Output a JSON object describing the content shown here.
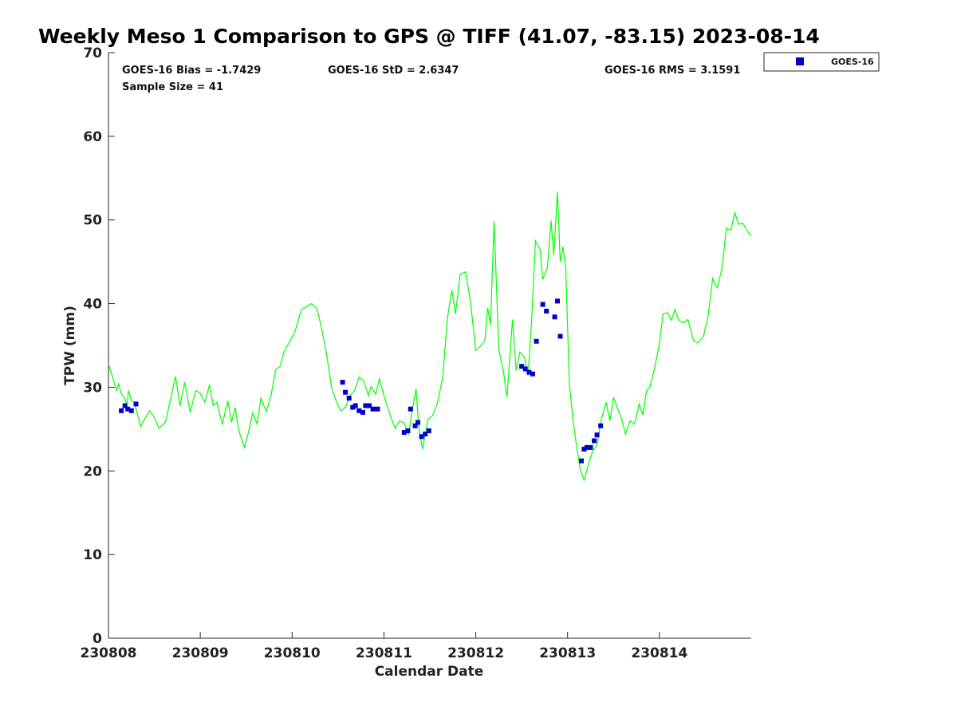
{
  "chart_data": {
    "type": "scatter",
    "title": "Weekly Meso 1 Comparison to GPS @ TIFF (41.07, -83.15) 2023-08-14",
    "xlabel": "Calendar Date",
    "ylabel": "TPW (mm)",
    "xlim": [
      230808,
      230815
    ],
    "ylim": [
      0,
      70
    ],
    "x_ticks": [
      "230808",
      "230809",
      "230810",
      "230811",
      "230812",
      "230813",
      "230814"
    ],
    "y_ticks": [
      0,
      10,
      20,
      30,
      40,
      50,
      60,
      70
    ],
    "grid": false,
    "legend_position": "top-right outside",
    "stats": {
      "bias": "GOES-16 Bias = -1.7429",
      "std": "GOES-16 StD = 2.6347",
      "rms": "GOES-16 RMS = 3.1591",
      "sample": "Sample Size = 41"
    },
    "series": [
      {
        "name": "GPS",
        "kind": "line",
        "color": "#00ff00",
        "points": [
          [
            230808.0,
            32.8
          ],
          [
            230808.05,
            31.0
          ],
          [
            230808.09,
            29.6
          ],
          [
            230808.11,
            30.4
          ],
          [
            230808.14,
            29.2
          ],
          [
            230808.17,
            28.8
          ],
          [
            230808.2,
            28.0
          ],
          [
            230808.22,
            29.6
          ],
          [
            230808.25,
            28.4
          ],
          [
            230808.28,
            28.2
          ],
          [
            230808.31,
            27.0
          ],
          [
            230808.35,
            25.3
          ],
          [
            230808.4,
            26.3
          ],
          [
            230808.45,
            27.2
          ],
          [
            230808.5,
            26.4
          ],
          [
            230808.55,
            25.1
          ],
          [
            230808.62,
            25.8
          ],
          [
            230808.68,
            28.8
          ],
          [
            230808.73,
            31.3
          ],
          [
            230808.78,
            27.8
          ],
          [
            230808.83,
            30.6
          ],
          [
            230808.89,
            27.0
          ],
          [
            230808.95,
            29.6
          ],
          [
            230809.0,
            29.3
          ],
          [
            230809.05,
            28.2
          ],
          [
            230809.1,
            30.3
          ],
          [
            230809.14,
            27.8
          ],
          [
            230809.18,
            28.2
          ],
          [
            230809.24,
            25.6
          ],
          [
            230809.3,
            28.4
          ],
          [
            230809.34,
            25.8
          ],
          [
            230809.38,
            27.6
          ],
          [
            230809.42,
            24.8
          ],
          [
            230809.48,
            22.8
          ],
          [
            230809.52,
            24.4
          ],
          [
            230809.57,
            26.9
          ],
          [
            230809.62,
            25.6
          ],
          [
            230809.66,
            28.7
          ],
          [
            230809.72,
            27.1
          ],
          [
            230809.77,
            29.0
          ],
          [
            230809.82,
            32.1
          ],
          [
            230809.87,
            32.5
          ],
          [
            230809.91,
            34.2
          ],
          [
            230809.96,
            35.2
          ],
          [
            230810.03,
            36.6
          ],
          [
            230810.1,
            39.3
          ],
          [
            230810.15,
            39.6
          ],
          [
            230810.21,
            40.0
          ],
          [
            230810.27,
            39.4
          ],
          [
            230810.32,
            37.1
          ],
          [
            230810.37,
            34.3
          ],
          [
            230810.43,
            30.0
          ],
          [
            230810.48,
            28.3
          ],
          [
            230810.53,
            27.2
          ],
          [
            230810.58,
            27.6
          ],
          [
            230810.63,
            29.0
          ],
          [
            230810.68,
            29.6
          ],
          [
            230810.73,
            31.2
          ],
          [
            230810.78,
            30.8
          ],
          [
            230810.83,
            29.0
          ],
          [
            230810.86,
            30.1
          ],
          [
            230810.91,
            29.2
          ],
          [
            230810.95,
            31.0
          ],
          [
            230811.01,
            28.6
          ],
          [
            230811.07,
            26.6
          ],
          [
            230811.12,
            25.1
          ],
          [
            230811.17,
            26.0
          ],
          [
            230811.22,
            25.7
          ],
          [
            230811.27,
            24.4
          ],
          [
            230811.3,
            26.7
          ],
          [
            230811.35,
            29.8
          ],
          [
            230811.38,
            25.2
          ],
          [
            230811.42,
            22.6
          ],
          [
            230811.48,
            26.2
          ],
          [
            230811.53,
            26.6
          ],
          [
            230811.58,
            28.0
          ],
          [
            230811.64,
            31.1
          ],
          [
            230811.69,
            38.2
          ],
          [
            230811.74,
            41.6
          ],
          [
            230811.78,
            38.8
          ],
          [
            230811.83,
            43.5
          ],
          [
            230811.89,
            43.8
          ],
          [
            230811.94,
            40.4
          ],
          [
            230812.0,
            34.4
          ],
          [
            230812.06,
            35.0
          ],
          [
            230812.1,
            35.6
          ],
          [
            230812.13,
            39.5
          ],
          [
            230812.16,
            37.5
          ],
          [
            230812.2,
            49.8
          ],
          [
            230812.25,
            34.6
          ],
          [
            230812.3,
            32.0
          ],
          [
            230812.34,
            28.8
          ],
          [
            230812.4,
            38.1
          ],
          [
            230812.44,
            32.0
          ],
          [
            230812.48,
            34.2
          ],
          [
            230812.53,
            33.6
          ],
          [
            230812.57,
            31.4
          ],
          [
            230812.61,
            38.2
          ],
          [
            230812.65,
            47.5
          ],
          [
            230812.7,
            46.5
          ],
          [
            230812.73,
            42.9
          ],
          [
            230812.78,
            44.3
          ],
          [
            230812.82,
            49.9
          ],
          [
            230812.85,
            45.8
          ],
          [
            230812.89,
            53.4
          ],
          [
            230812.92,
            45.0
          ],
          [
            230812.95,
            46.8
          ],
          [
            230812.98,
            44.2
          ],
          [
            230813.02,
            30.3
          ],
          [
            230813.06,
            26.0
          ],
          [
            230813.1,
            22.8
          ],
          [
            230813.14,
            20.1
          ],
          [
            230813.18,
            18.9
          ],
          [
            230813.22,
            20.5
          ],
          [
            230813.27,
            22.3
          ],
          [
            230813.32,
            23.1
          ],
          [
            230813.37,
            26.3
          ],
          [
            230813.42,
            28.2
          ],
          [
            230813.46,
            26.0
          ],
          [
            230813.5,
            28.8
          ],
          [
            230813.55,
            27.3
          ],
          [
            230813.59,
            26.2
          ],
          [
            230813.63,
            24.4
          ],
          [
            230813.68,
            26.0
          ],
          [
            230813.73,
            25.6
          ],
          [
            230813.78,
            28.0
          ],
          [
            230813.82,
            26.7
          ],
          [
            230813.86,
            29.6
          ],
          [
            230813.9,
            30.1
          ],
          [
            230813.95,
            32.4
          ],
          [
            230814.0,
            35.3
          ],
          [
            230814.04,
            38.8
          ],
          [
            230814.09,
            38.9
          ],
          [
            230814.13,
            38.0
          ],
          [
            230814.17,
            39.3
          ],
          [
            230814.21,
            38.0
          ],
          [
            230814.26,
            37.7
          ],
          [
            230814.31,
            38.1
          ],
          [
            230814.37,
            35.6
          ],
          [
            230814.42,
            35.3
          ],
          [
            230814.48,
            36.1
          ],
          [
            230814.53,
            38.5
          ],
          [
            230814.58,
            43.0
          ],
          [
            230814.63,
            41.9
          ],
          [
            230814.68,
            44.2
          ],
          [
            230814.73,
            49.0
          ],
          [
            230814.78,
            48.8
          ],
          [
            230814.82,
            50.9
          ],
          [
            230814.86,
            49.5
          ],
          [
            230814.91,
            49.6
          ],
          [
            230814.96,
            48.6
          ],
          [
            230815.0,
            48.1
          ]
        ]
      },
      {
        "name": "GOES-16",
        "kind": "scatter",
        "color": "#0000cc",
        "points": [
          [
            230808.14,
            27.2
          ],
          [
            230808.18,
            27.8
          ],
          [
            230808.21,
            27.4
          ],
          [
            230808.25,
            27.2
          ],
          [
            230808.3,
            28.0
          ],
          [
            230810.55,
            30.6
          ],
          [
            230810.58,
            29.4
          ],
          [
            230810.62,
            28.7
          ],
          [
            230810.66,
            27.6
          ],
          [
            230810.69,
            27.8
          ],
          [
            230810.73,
            27.2
          ],
          [
            230810.77,
            27.0
          ],
          [
            230810.8,
            27.8
          ],
          [
            230810.84,
            27.8
          ],
          [
            230810.88,
            27.4
          ],
          [
            230810.93,
            27.4
          ],
          [
            230811.22,
            24.6
          ],
          [
            230811.26,
            24.8
          ],
          [
            230811.29,
            27.4
          ],
          [
            230811.34,
            25.4
          ],
          [
            230811.37,
            25.8
          ],
          [
            230811.41,
            24.1
          ],
          [
            230811.45,
            24.4
          ],
          [
            230811.49,
            24.8
          ],
          [
            230812.5,
            32.5
          ],
          [
            230812.54,
            32.2
          ],
          [
            230812.58,
            31.8
          ],
          [
            230812.62,
            31.6
          ],
          [
            230812.66,
            35.5
          ],
          [
            230812.73,
            39.9
          ],
          [
            230812.77,
            39.1
          ],
          [
            230812.86,
            38.4
          ],
          [
            230812.89,
            40.3
          ],
          [
            230812.92,
            36.1
          ],
          [
            230813.15,
            21.2
          ],
          [
            230813.18,
            22.6
          ],
          [
            230813.21,
            22.8
          ],
          [
            230813.25,
            22.8
          ],
          [
            230813.29,
            23.6
          ],
          [
            230813.32,
            24.3
          ],
          [
            230813.36,
            25.4
          ]
        ]
      }
    ]
  }
}
